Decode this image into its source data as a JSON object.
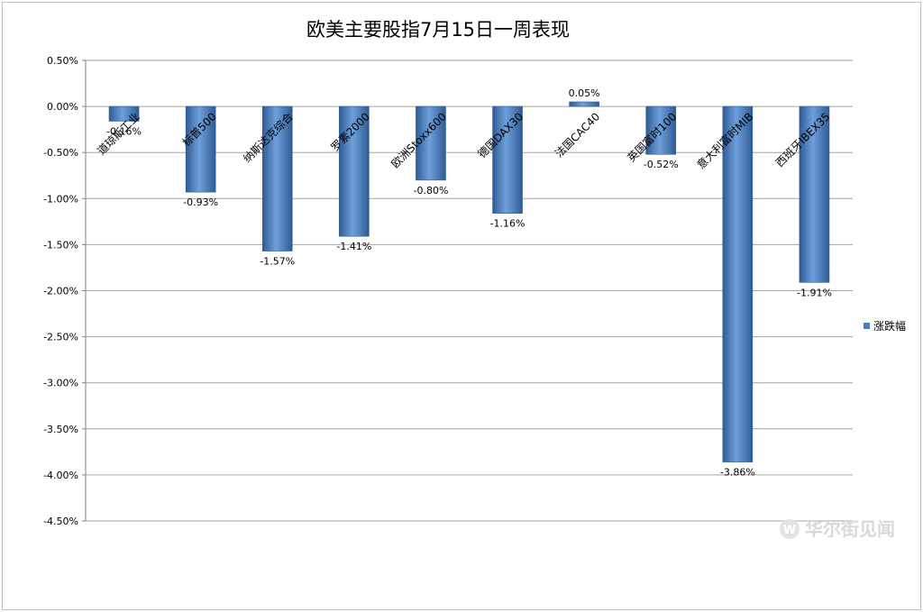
{
  "chart_data": {
    "type": "bar",
    "title": "欧美主要股指7月15日一周表现",
    "categories": [
      "道琼斯工业",
      "标普500",
      "纳斯达克综合",
      "罗素2000",
      "欧洲Stoxx600",
      "德国DAX30",
      "法国CAC40",
      "英国富时100",
      "意大利富时MIB",
      "西班牙IBEX35"
    ],
    "series": [
      {
        "name": "涨跌幅",
        "values": [
          -0.16,
          -0.93,
          -1.57,
          -1.41,
          -0.8,
          -1.16,
          0.05,
          -0.52,
          -3.86,
          -1.91
        ],
        "labels": [
          "-0.16%",
          "-0.93%",
          "-1.57%",
          "-1.41%",
          "-0.80%",
          "-1.16%",
          "0.05%",
          "-0.52%",
          "-3.86%",
          "-1.91%"
        ]
      }
    ],
    "ylim": [
      -4.5,
      0.5
    ],
    "yticks": [
      0.5,
      0.0,
      -0.5,
      -1.0,
      -1.5,
      -2.0,
      -2.5,
      -3.0,
      -3.5,
      -4.0,
      -4.5
    ],
    "ytick_labels": [
      "0.50%",
      "0.00%",
      "-0.50%",
      "-1.00%",
      "-1.50%",
      "-2.00%",
      "-2.50%",
      "-3.00%",
      "-3.50%",
      "-4.00%",
      "-4.50%"
    ],
    "xlabel": "",
    "ylabel": "",
    "grid": true,
    "legend": "right",
    "colors": {
      "bar": "#4a7ebb",
      "bar_light": "#6fa0dc",
      "bar_dark": "#2f5b94",
      "grid": "#a6a6a6"
    }
  },
  "watermark": {
    "text": "华尔街见闻",
    "icon": "wallstreetcn-logo-icon"
  }
}
